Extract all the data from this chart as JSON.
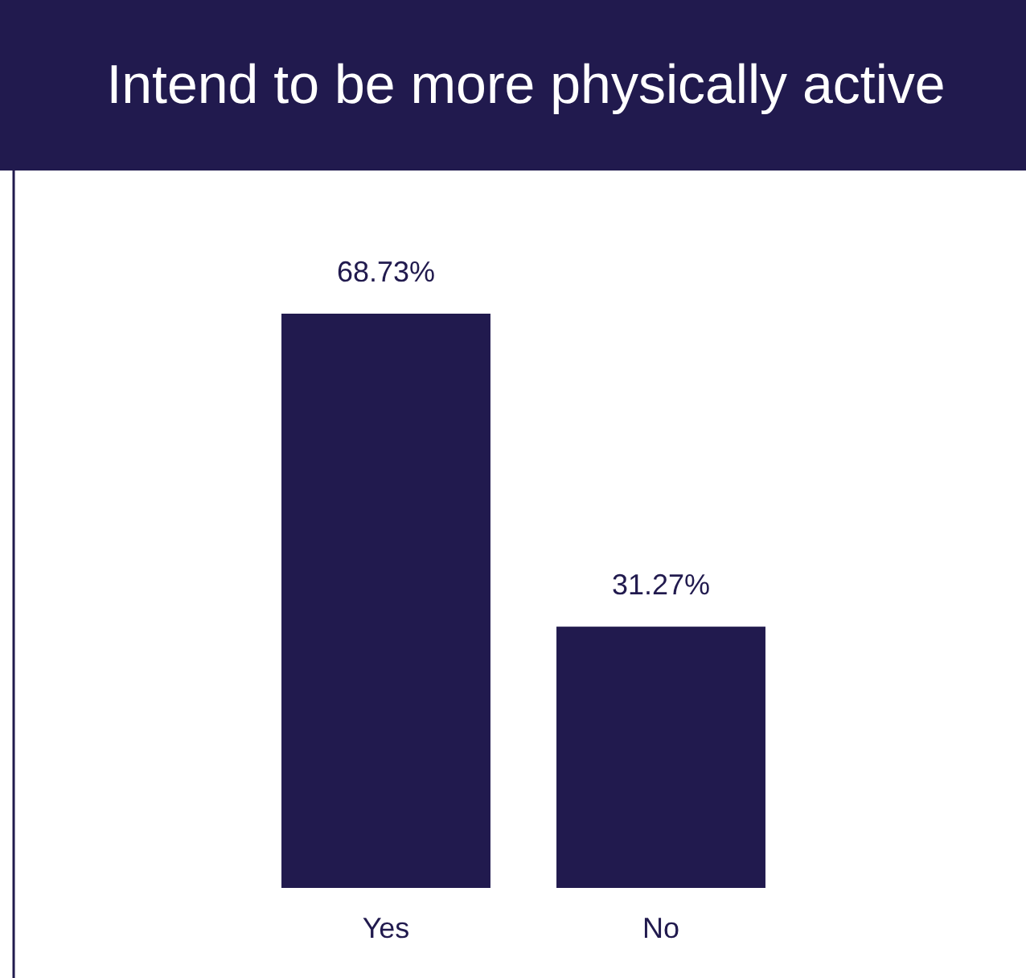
{
  "chart_data": {
    "type": "bar",
    "title": "Intend to be more physically active",
    "categories": [
      "Yes",
      "No"
    ],
    "values": [
      68.73,
      31.27
    ],
    "value_labels": [
      "68.73%",
      "31.27%"
    ],
    "color": "#211a4e"
  }
}
